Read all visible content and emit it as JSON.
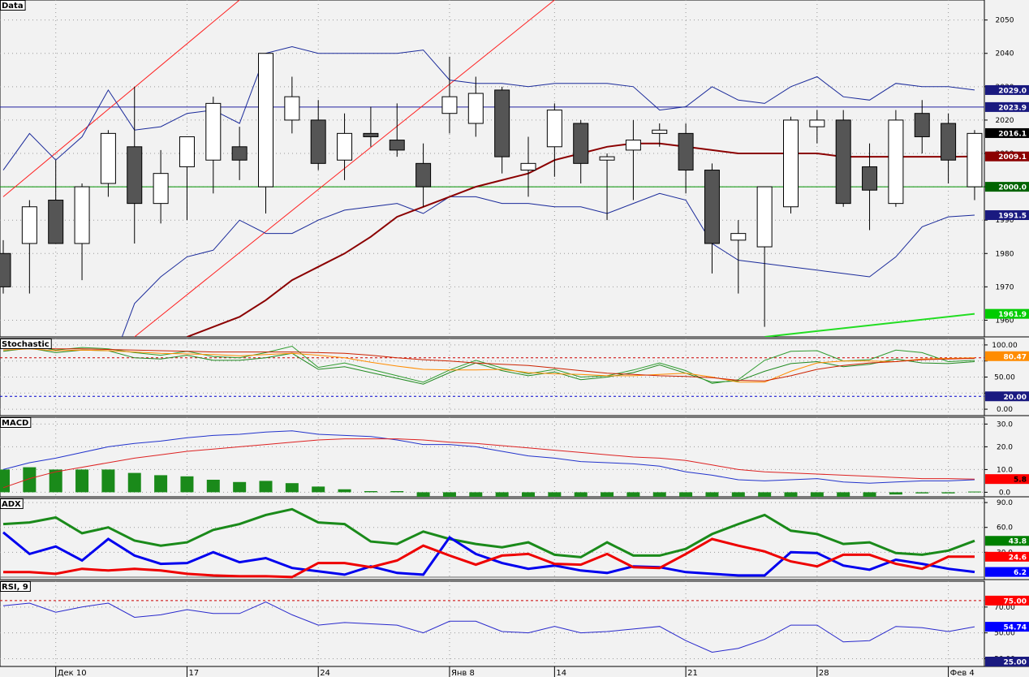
{
  "chart_data": {
    "type": "candlestick",
    "x_labels": [
      {
        "i": 2,
        "label": "Дек 10"
      },
      {
        "i": 7,
        "label": "17"
      },
      {
        "i": 12,
        "label": "24"
      },
      {
        "i": 17,
        "label": "Янв 8"
      },
      {
        "i": 21,
        "label": "14"
      },
      {
        "i": 26,
        "label": "21"
      },
      {
        "i": 31,
        "label": "28"
      },
      {
        "i": 36,
        "label": "Фев 4"
      }
    ],
    "panels": {
      "price": {
        "title": "Data",
        "ylim": [
          1955,
          2056
        ],
        "ticks": [
          1960,
          1970,
          1980,
          1990,
          2000,
          2010,
          2020,
          2030,
          2040,
          2050
        ],
        "hlines": [
          {
            "value": 2023.9,
            "color": "#2020a0"
          },
          {
            "value": 2000.0,
            "color": "#009000"
          }
        ],
        "badges": [
          {
            "value": 2029.0,
            "label": "2029.0",
            "bg": "#1a1a80",
            "fg": "#ffffff"
          },
          {
            "value": 2023.9,
            "label": "2023.9",
            "bg": "#1a1a80",
            "fg": "#ffffff"
          },
          {
            "value": 2016.1,
            "label": "2016.1",
            "bg": "#000000",
            "fg": "#ffffff"
          },
          {
            "value": 2009.1,
            "label": "2009.1",
            "bg": "#8b0000",
            "fg": "#ffffff"
          },
          {
            "value": 2000.0,
            "label": "2000.0",
            "bg": "#006400",
            "fg": "#ffffff"
          },
          {
            "value": 1991.5,
            "label": "1991.5",
            "bg": "#1a1a80",
            "fg": "#ffffff"
          },
          {
            "value": 1961.9,
            "label": "1961.9",
            "bg": "#00cc00",
            "fg": "#ffffff"
          }
        ],
        "candles": [
          [
            1980,
            1984,
            1968,
            1970
          ],
          [
            1983,
            1996,
            1968,
            1994
          ],
          [
            1996,
            2008,
            1983,
            1983
          ],
          [
            1983,
            2001,
            1972,
            2000
          ],
          [
            2001,
            2017,
            1997,
            2016
          ],
          [
            2012,
            2030,
            1983,
            1995
          ],
          [
            1995,
            2011,
            1989,
            2004
          ],
          [
            2006,
            2015,
            1990,
            2015
          ],
          [
            2008,
            2027,
            1998,
            2025
          ],
          [
            2012,
            2018,
            2002,
            2008
          ],
          [
            2000,
            2039,
            1992,
            2040
          ],
          [
            2020,
            2033,
            2016,
            2027
          ],
          [
            2020,
            2026,
            2005,
            2007
          ],
          [
            2008,
            2022,
            2002,
            2016
          ],
          [
            2016,
            2024,
            2012,
            2015
          ],
          [
            2014,
            2025,
            2009,
            2011
          ],
          [
            2007,
            2013,
            1994,
            2000
          ],
          [
            2022,
            2039,
            2016,
            2027
          ],
          [
            2019,
            2033,
            2015,
            2028
          ],
          [
            2029,
            2030,
            2004,
            2009
          ],
          [
            2005,
            2015,
            1997,
            2007
          ],
          [
            2012,
            2025,
            2003,
            2023
          ],
          [
            2019,
            2020,
            2001,
            2007
          ],
          [
            2008,
            2010,
            1990,
            2009
          ],
          [
            2011,
            2020,
            1996,
            2014
          ],
          [
            2016,
            2019,
            2012,
            2017
          ],
          [
            2016,
            2019,
            1998,
            2005
          ],
          [
            2005,
            2007,
            1974,
            1983
          ],
          [
            1984,
            1990,
            1968,
            1986
          ],
          [
            1982,
            2000,
            1958,
            2000
          ],
          [
            1994,
            2021,
            1992,
            2020
          ],
          [
            2018,
            2023,
            2013,
            2020
          ],
          [
            2020,
            2023,
            1994,
            1995
          ],
          [
            2006,
            2013,
            1987,
            1999
          ],
          [
            1995,
            2023,
            1994,
            2020
          ],
          [
            2022,
            2026,
            2010,
            2015
          ],
          [
            2019,
            2022,
            2001,
            2008
          ],
          [
            2000,
            2017,
            1996,
            2016
          ]
        ],
        "bb_upper": [
          2005,
          2016,
          2008,
          2015,
          2029,
          2017,
          2018,
          2022,
          2023,
          2019,
          2040,
          2042,
          2040,
          2040,
          2040,
          2040,
          2041,
          2032,
          2031,
          2031,
          2030,
          2031,
          2031,
          2031,
          2030,
          2023,
          2024,
          2030,
          2026,
          2025,
          2030,
          2033,
          2027,
          2026,
          2031,
          2030,
          2030,
          2029
        ],
        "bb_lower": [
          null,
          null,
          null,
          null,
          1944,
          1965,
          1973,
          1979,
          1981,
          1990,
          1986,
          1986,
          1990,
          1993,
          1994,
          1995,
          1992,
          1997,
          1997,
          1995,
          1995,
          1994,
          1994,
          1992,
          1995,
          1998,
          1996,
          1983,
          1978,
          1977,
          1976,
          1975,
          1974,
          1973,
          1979,
          1988,
          1991,
          1991.5
        ],
        "ma": [
          null,
          null,
          null,
          null,
          null,
          null,
          null,
          1955,
          1958,
          1961,
          1966,
          1972,
          1976,
          1980,
          1985,
          1991,
          1994,
          1997,
          2000,
          2002,
          2004,
          2008,
          2010,
          2012,
          2013,
          2013,
          2012,
          2011,
          2010,
          2010,
          2010,
          2010,
          2009,
          2009,
          2009,
          2009,
          2009,
          2009.1
        ],
        "green_line": {
          "i_from": 29,
          "i_to": 37,
          "v_from": 1955,
          "v_to": 1961.9
        },
        "red_lines": [
          {
            "i_from": 0,
            "v_from": 1997,
            "i_to": 9,
            "v_to": 2056
          },
          {
            "i_from": 5,
            "v_from": 1955,
            "i_to": 21,
            "v_to": 2056
          }
        ]
      },
      "stochastic": {
        "title": "Stochastic",
        "ylim": [
          -10,
          110
        ],
        "ticks": [
          0,
          25,
          50,
          75,
          100
        ],
        "tick_labels": [
          "0.00",
          "",
          "50.00",
          "",
          "100.00"
        ],
        "levels": [
          {
            "value": 80,
            "color": "#cc0000"
          },
          {
            "value": 20,
            "color": "#0000cc"
          }
        ],
        "badges": [
          {
            "value": 20,
            "label": "20.00",
            "bg": "#1a1a80",
            "fg": "#ffffff"
          },
          {
            "value": 82.5,
            "label": "80.47",
            "bg": "#ff8c00",
            "fg": "#ffffff"
          }
        ],
        "series": [
          {
            "values": [
              90,
              95,
              88,
              92,
              91,
              80,
              78,
              84,
              76,
              76,
              80,
              87,
              62,
              66,
              57,
              48,
              39,
              57,
              72,
              60,
              52,
              58,
              46,
              50,
              57,
              69,
              56,
              42,
              44,
              59,
              71,
              74,
              66,
              70,
              78,
              72,
              71,
              74
            ],
            "color": "#228b22"
          },
          {
            "values": [
              95,
              99,
              92,
              96,
              94,
              88,
              84,
              90,
              82,
              80,
              88,
              98,
              65,
              72,
              62,
              52,
              42,
              61,
              76,
              64,
              55,
              62,
              50,
              52,
              61,
              72,
              60,
              40,
              46,
              76,
              90,
              91,
              75,
              77,
              92,
              88,
              74,
              76
            ],
            "color": "#2e9b2e"
          },
          {
            "values": [
              92,
              94,
              91,
              92,
              91,
              89,
              87,
              86,
              85,
              83,
              85,
              87,
              84,
              80,
              73,
              67,
              62,
              61,
              61,
              62,
              57,
              55,
              54,
              52,
              52,
              54,
              56,
              50,
              42,
              42,
              59,
              72,
              75,
              75,
              74,
              78,
              79,
              80
            ],
            "color": "#ff8c00"
          },
          {
            "values": [
              94,
              95,
              94,
              94,
              93,
              92,
              91,
              90,
              89,
              89,
              89,
              89,
              88,
              87,
              84,
              80,
              77,
              75,
              72,
              70,
              68,
              64,
              60,
              56,
              54,
              52,
              51,
              49,
              45,
              44,
              52,
              62,
              68,
              72,
              74,
              77,
              78,
              79
            ],
            "color": "#cc2200"
          }
        ]
      },
      "macd": {
        "title": "MACD",
        "ylim": [
          -2,
          33
        ],
        "ticks": [
          0,
          10,
          20,
          30
        ],
        "tick_labels": [
          "0.0",
          "10.0",
          "20.0",
          "30.0"
        ],
        "badges": [
          {
            "value": 5.8,
            "label": "5.8",
            "bg": "#ff0000",
            "fg": "#000000"
          }
        ],
        "histogram": [
          10,
          11,
          10,
          10,
          10,
          8.5,
          7.5,
          7,
          5.5,
          4.5,
          5,
          4,
          2.5,
          1.3,
          0.5,
          0.5,
          -2,
          -2,
          -2,
          -2,
          -2.5,
          -2.5,
          -2.5,
          -2.5,
          -2.5,
          -2.5,
          -2.5,
          -2.5,
          -2.5,
          -2.5,
          -2.5,
          -2,
          -2,
          -2,
          -1,
          -0.5,
          -0.5,
          0.3
        ],
        "macd_line": [
          10,
          13,
          15,
          17.5,
          20,
          21.5,
          22.5,
          24,
          25,
          25.5,
          26.5,
          27,
          25.5,
          25,
          24.5,
          23,
          21,
          21,
          20,
          18,
          16,
          15,
          13.5,
          13,
          12.5,
          11.5,
          9,
          7.5,
          5.5,
          5,
          5.5,
          6,
          4.5,
          4,
          4.5,
          5,
          5,
          5.5
        ],
        "signal_line": [
          2,
          6,
          9,
          11,
          13,
          15,
          16.5,
          18,
          19,
          20,
          21,
          22,
          23,
          23.5,
          23.5,
          23.5,
          23,
          22,
          21.5,
          20.5,
          19.5,
          18.5,
          17.5,
          16.5,
          15.5,
          15,
          14,
          12,
          10,
          9,
          8.5,
          8,
          7.5,
          7,
          6.5,
          6,
          6,
          5.8
        ]
      },
      "adx": {
        "title": "ADX",
        "ylim": [
          -3,
          95
        ],
        "ticks": [
          30,
          60,
          90
        ],
        "tick_labels": [
          "30.0",
          "60.0",
          "90.0"
        ],
        "badges": [
          {
            "value": 43.8,
            "label": "43.8",
            "bg": "#008000",
            "fg": "#ffffff"
          },
          {
            "value": 24.6,
            "label": "24.6",
            "bg": "#ff0000",
            "fg": "#ffffff"
          },
          {
            "value": 6.2,
            "label": "6.2",
            "bg": "#0000ff",
            "fg": "#ffffff"
          }
        ],
        "series": [
          {
            "values": [
              64,
              66,
              72,
              53,
              60,
              44,
              38,
              42,
              57,
              64,
              75,
              82,
              66,
              64,
              43,
              40,
              55,
              46,
              40,
              36,
              42,
              27,
              24,
              42,
              26,
              26,
              34,
              52,
              64,
              75,
              56,
              52,
              40,
              42,
              29,
              27,
              32,
              43.8
            ],
            "color": "#1a8a1a"
          },
          {
            "values": [
              54,
              28,
              37,
              20,
              46,
              26,
              16,
              17,
              30,
              18,
              23,
              11,
              7,
              3,
              13,
              5,
              3,
              48,
              28,
              17,
              10,
              14,
              8,
              5,
              13,
              12,
              6,
              4,
              2,
              2,
              30,
              29,
              14,
              9,
              21,
              16,
              10,
              6.2
            ],
            "color": "#0000ee"
          },
          {
            "values": [
              6,
              6,
              4,
              10,
              8,
              10,
              8,
              4,
              2,
              1,
              1,
              0,
              17,
              17,
              12,
              20,
              38,
              26,
              15,
              26,
              28,
              16,
              15,
              28,
              12,
              11,
              28,
              46,
              38,
              31,
              19,
              13,
              27,
              27,
              16,
              10,
              24.6,
              24.6
            ],
            "color": "#ee0000"
          }
        ]
      },
      "rsi": {
        "title": "RSI, 9",
        "ylim": [
          24,
          90
        ],
        "ticks": [
          30,
          50,
          70
        ],
        "tick_labels": [
          "30.00",
          "50.00",
          "70.00"
        ],
        "levels": [
          {
            "value": 75,
            "color": "#cc0000"
          }
        ],
        "badges": [
          {
            "value": 75,
            "label": "75.00",
            "bg": "#ff0000",
            "fg": "#ffffff"
          },
          {
            "value": 54.74,
            "label": "54.74",
            "bg": "#0000ff",
            "fg": "#ffffff"
          },
          {
            "value": 25,
            "label": "25.00",
            "bg": "#1a1a80",
            "fg": "#ffffff"
          }
        ],
        "series": [
          {
            "values": [
              71,
              73,
              66,
              70,
              73,
              62,
              64,
              68,
              65,
              65,
              74,
              64,
              56,
              58,
              57,
              56,
              50,
              59,
              59,
              51,
              50,
              55,
              50,
              51,
              53,
              55,
              44,
              35,
              38,
              45,
              56,
              56,
              43,
              44,
              55,
              54,
              51,
              54.74
            ],
            "color": "#2828cc"
          }
        ]
      }
    }
  }
}
